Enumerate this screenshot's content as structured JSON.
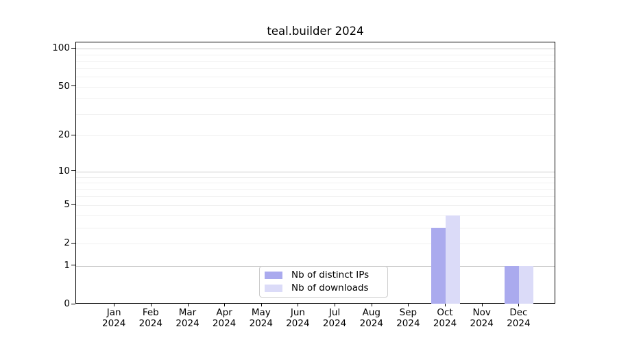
{
  "chart_data": {
    "type": "bar",
    "title": "teal.builder 2024",
    "y_scale": "log1p",
    "categories": [
      "Jan 2024",
      "Feb 2024",
      "Mar 2024",
      "Apr 2024",
      "May 2024",
      "Jun 2024",
      "Jul 2024",
      "Aug 2024",
      "Sep 2024",
      "Oct 2024",
      "Nov 2024",
      "Dec 2024"
    ],
    "series": [
      {
        "name": "Nb of distinct IPs",
        "color": "#aaaaee",
        "values": [
          0,
          0,
          0,
          0,
          0,
          0,
          0,
          0,
          0,
          3,
          0,
          1
        ]
      },
      {
        "name": "Nb of downloads",
        "color": "#dbdbf8",
        "values": [
          0,
          0,
          0,
          0,
          0,
          0,
          0,
          0,
          0,
          4,
          0,
          1
        ]
      }
    ],
    "yticks": [
      0,
      1,
      2,
      5,
      10,
      20,
      50,
      100
    ],
    "ylim": [
      0,
      112
    ],
    "grid": "horizontal",
    "legend_position": "lower-center-inside",
    "colors": {
      "major_grid": "#cbcbcb",
      "minor_grid": "#f0f0f0",
      "spine": "#000000",
      "background": "#ffffff",
      "text": "#000000"
    }
  }
}
